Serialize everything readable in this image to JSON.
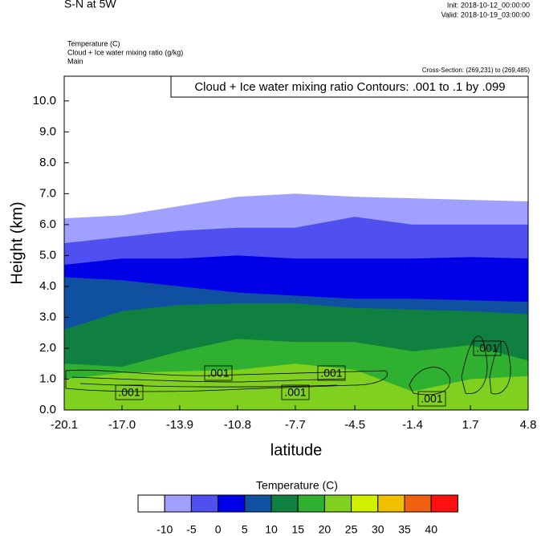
{
  "chart_data": {
    "type": "contour",
    "title": "S-N at 5W",
    "init": "Init: 2018-10-12_00:00:00",
    "valid": "Valid: 2018-10-19_03:00:00",
    "fields": [
      "Temperature   (C)",
      "Cloud + Ice water mixing ratio   (g/kg)",
      "Main"
    ],
    "cross_section": "Cross-Section: (269,231) to (269,485)",
    "contour_info": "Cloud + Ice water mixing ratio Contours: .001 to .1 by .099",
    "ylabel": "Height (km)",
    "xlabel": "latitude",
    "xlim": [
      -20.1,
      4.8
    ],
    "xticks": [
      -20.1,
      {
        "value": -17,
        "label": "-17.0"
      },
      -13.9,
      -10.8,
      -7.7,
      -4.5,
      -1.4,
      1.7,
      4.8
    ],
    "ylim": [
      0,
      10.8
    ],
    "yticks": [
      {
        "value": 0,
        "label": "0.0"
      },
      {
        "value": 1,
        "label": "1.0"
      },
      {
        "value": 2,
        "label": "2.0"
      },
      {
        "value": 3,
        "label": "3.0"
      },
      {
        "value": 4,
        "label": "4.0"
      },
      {
        "value": 5,
        "label": "5.0"
      },
      {
        "value": 6,
        "label": "6.0"
      },
      {
        "value": 7,
        "label": "7.0"
      },
      {
        "value": 8,
        "label": "8.0"
      },
      {
        "value": 9,
        "label": "9.0"
      },
      {
        "value": 10,
        "label": "10.0"
      }
    ],
    "x": [
      -20.1,
      -17,
      -13.9,
      -10.8,
      -7.7,
      -4.5,
      -1.4,
      1.7,
      4.8
    ],
    "bands": [
      {
        "level": -10,
        "top": [
          6.2,
          6.3,
          6.6,
          6.9,
          7.0,
          6.9,
          6.85,
          6.8,
          6.75
        ]
      },
      {
        "level": -5,
        "top": [
          5.4,
          5.6,
          5.8,
          5.9,
          5.9,
          6.25,
          6.0,
          6.0,
          6.0
        ]
      },
      {
        "level": 0,
        "top": [
          4.7,
          4.9,
          4.9,
          5.0,
          4.9,
          4.9,
          4.9,
          4.95,
          4.9
        ]
      },
      {
        "level": 5,
        "top": [
          4.3,
          4.2,
          4.0,
          3.8,
          3.7,
          3.6,
          3.6,
          3.55,
          3.5
        ]
      },
      {
        "level": 10,
        "top": [
          2.6,
          3.2,
          3.4,
          3.45,
          3.45,
          3.3,
          3.25,
          3.2,
          3.1
        ]
      },
      {
        "level": 15,
        "top": [
          1.5,
          1.4,
          1.9,
          2.3,
          2.2,
          2.2,
          1.9,
          2.1,
          1.6
        ]
      },
      {
        "level": 20,
        "top": [
          1.0,
          1.2,
          1.25,
          1.3,
          1.5,
          1.3,
          0.6,
          1.0,
          1.1
        ]
      }
    ],
    "contour_labels": [
      ".001",
      ".001",
      ".001",
      ".001",
      ".001",
      ".001"
    ],
    "colorbar": {
      "title": "Temperature  (C)",
      "levels": [
        -10,
        -5,
        0,
        5,
        10,
        15,
        20,
        25,
        30,
        35,
        40
      ],
      "colors": [
        "#ffffff",
        "#a0a0ff",
        "#5050f0",
        "#0000e8",
        "#1050a0",
        "#108040",
        "#30b030",
        "#80d020",
        "#d0f000",
        "#f0c000",
        "#f06010",
        "#ff1010"
      ]
    }
  }
}
